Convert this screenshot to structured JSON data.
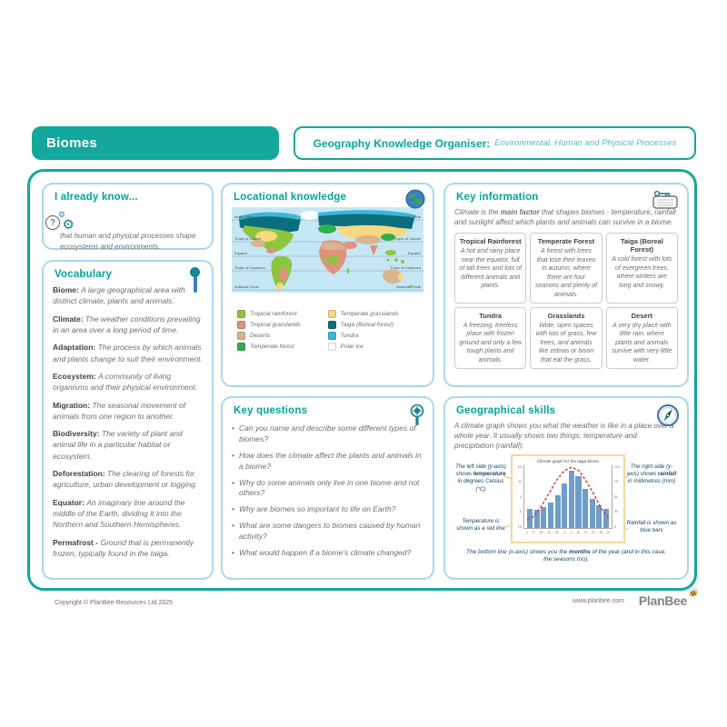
{
  "header": {
    "badge": "Biomes",
    "title": "Geography Knowledge Organiser:",
    "subtitle": "Environmental, Human and Physical Processes"
  },
  "already_know": {
    "title": "I already know...",
    "body": "that human and physical processes shape ecosystems and environments."
  },
  "vocabulary": {
    "title": "Vocabulary",
    "terms": [
      {
        "term": "Biome:",
        "definition": "A large geographical area with distinct climate, plants and animals."
      },
      {
        "term": "Climate:",
        "definition": "The weather conditions prevailing in an area over a long period of time."
      },
      {
        "term": "Adaptation:",
        "definition": "The process by which animals and plants change to suit their environment."
      },
      {
        "term": "Ecosystem:",
        "definition": "A community of living organisms and their physical environment."
      },
      {
        "term": "Migration:",
        "definition": "The seasonal movement of animals from one region to another."
      },
      {
        "term": "Biodiversity:",
        "definition": "The variety of plant and animal life in a particular habitat or ecosystem."
      },
      {
        "term": "Deforestation:",
        "definition": "The clearing of forests for agriculture, urban development or logging."
      },
      {
        "term": "Equator:",
        "definition": "An imaginary line around the middle of the Earth, dividing it into the Northern and Southern Hemispheres."
      },
      {
        "term": "Permafrost -",
        "definition": "Ground that is permanently frozen, typically found in the taiga."
      }
    ]
  },
  "locational": {
    "title": "Locational knowledge",
    "latitude_labels": [
      "Arctic Circle",
      "Tropic of Cancer",
      "Equator",
      "Tropic of Capricorn",
      "Antarctic Circle"
    ],
    "legend": {
      "left": [
        {
          "label": "Tropical rainforest",
          "color": "#8cc63f"
        },
        {
          "label": "Tropical grasslands",
          "color": "#e0927d"
        },
        {
          "label": "Deserts",
          "color": "#d9b48f"
        },
        {
          "label": "Temperate forest",
          "color": "#2eb14d"
        }
      ],
      "right": [
        {
          "label": "Temperate grasslands",
          "color": "#f6d97e"
        },
        {
          "label": "Taiga (Boreal forest)",
          "color": "#0a6e7c"
        },
        {
          "label": "Tundra",
          "color": "#3fb5d8"
        },
        {
          "label": "Polar ice",
          "color": "#ffffff"
        }
      ]
    }
  },
  "key_information": {
    "title": "Key information",
    "intro_pre": "Climate is the ",
    "intro_bold": "main factor",
    "intro_post": " that shapes biomes - temperature, rainfall and sunlight affect which plants and animals can survive in a biome.",
    "cells": [
      {
        "name": "Tropical Rainforest",
        "text": "A hot and rainy place near the equator, full of tall trees and lots of different animals and plants."
      },
      {
        "name": "Temperate Forest",
        "text": "A forest with trees that lose their leaves in autumn, where there are four seasons and plenty of animals."
      },
      {
        "name": "Taiga (Boreal Forest)",
        "text": "A cold forest with lots of evergreen trees, where winters are long and snowy."
      },
      {
        "name": "Tundra",
        "text": "A freezing, treeless place with frozen ground and only a few tough plants and animals."
      },
      {
        "name": "Grasslands",
        "text": "Wide, open spaces with lots of grass, few trees, and animals like zebras or bison that eat the grass."
      },
      {
        "name": "Desert",
        "text": "A very dry place with little rain, where plants and animals survive with very little water."
      }
    ]
  },
  "key_questions": {
    "title": "Key questions",
    "questions": [
      "Can you name and describe some different types of biomes?",
      "How does the climate affect the plants and animals in a biome?",
      "Why do some animals only live in one biome and not others?",
      "Why are biomes so important to life on Earth?",
      "What are some dangers to biomes caused by human activity?",
      "What would happen if a biome's climate changed?"
    ]
  },
  "geographical_skills": {
    "title": "Geographical skills",
    "intro": "A climate graph shows you what the weather is like in a place over a whole year. It usually shows two things: temperature and precipitation (rainfall).",
    "left_note_pre": "The left side (y-axis) shows ",
    "left_note_bold": "temperature",
    "left_note_post": " in degrees Celsius (°C)",
    "left_note2": "Temperature is shown as a red line",
    "right_note_pre": "The right side (y-axis) shows ",
    "right_note_bold": "rainfall",
    "right_note_post": " in millimetres (mm)",
    "right_note2": "Rainfall is shown as blue bars",
    "caption_pre": "The bottom line (x-axis) shows you the ",
    "caption_bold": "months",
    "caption_post": " of the year (and in this case, the seasons too)."
  },
  "chart_data": {
    "type": "bar",
    "title": "Climate graph for the taiga biome",
    "months": [
      "J",
      "F",
      "M",
      "A",
      "M",
      "J",
      "J",
      "A",
      "S",
      "O",
      "N",
      "D"
    ],
    "series": [
      {
        "name": "Rainfall (mm)",
        "type": "bar",
        "color": "#6d9dc9",
        "values": [
          30,
          28,
          33,
          40,
          52,
          70,
          90,
          82,
          62,
          46,
          35,
          30
        ]
      },
      {
        "name": "Temperature (°C)",
        "type": "line",
        "color": "#c0504d",
        "values": [
          -10,
          -8,
          -2,
          5,
          12,
          17,
          19,
          17,
          11,
          4,
          -4,
          -9
        ]
      }
    ],
    "ylim_left_temperature": [
      -15,
      20
    ],
    "ylim_right_rainfall": [
      0,
      100
    ],
    "xlabel": "Months of the year",
    "ylabel_left": "Temperature (°C)",
    "ylabel_right": "Rainfall (mm)",
    "legend_position": "annotations around chart",
    "grid": false
  },
  "footer": {
    "copyright": "Copyright © PlanBee Resources Ltd 2025",
    "website": "www.planbee.com",
    "logo": "PlanBee"
  }
}
